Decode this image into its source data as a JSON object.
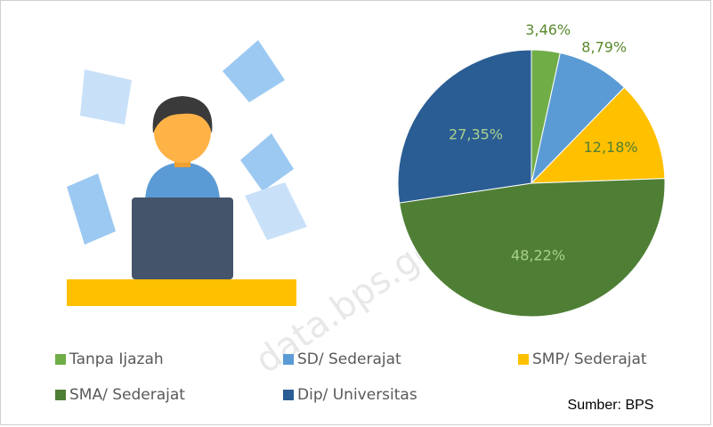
{
  "chart_data": {
    "type": "pie",
    "categories": [
      "Tanpa Ijazah",
      "SD/ Sederajat",
      "SMP/ Sederajat",
      "SMA/ Sederajat",
      "Dip/ Universitas"
    ],
    "values": [
      3.46,
      8.79,
      12.18,
      48.22,
      27.35
    ],
    "value_labels": [
      "3,46%",
      "8,79%",
      "12,18%",
      "48,22%",
      "27,35%"
    ],
    "colors": [
      "#70ad47",
      "#5b9bd5",
      "#ffc000",
      "#4f7f35",
      "#2a5d93"
    ],
    "source": "Sumber: BPS",
    "watermark": "data.bps.go.id"
  }
}
